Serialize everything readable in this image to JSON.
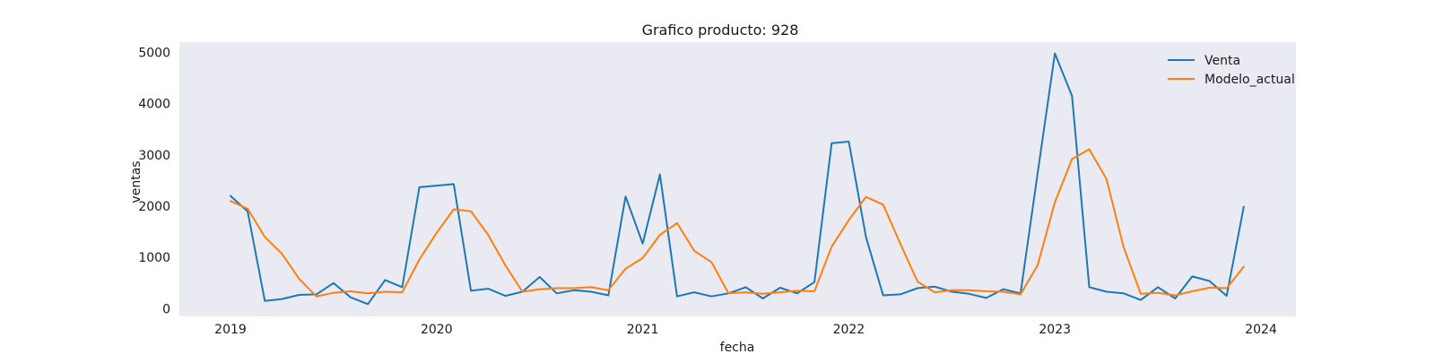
{
  "chart_data": {
    "type": "line",
    "title": "Grafico producto: 928",
    "xlabel": "fecha",
    "ylabel": "ventas",
    "x_start": "2019-01",
    "x_tick_labels": [
      "2019",
      "2020",
      "2021",
      "2022",
      "2023",
      "2024"
    ],
    "y_ticks": [
      0,
      1000,
      2000,
      3000,
      4000,
      5000
    ],
    "ylim": [
      -150,
      5200
    ],
    "grid": false,
    "legend_position": "top-right",
    "plot_background": "#eaeaf2",
    "series": [
      {
        "name": "Venta",
        "color": "#1f77b4",
        "values": [
          2200,
          1900,
          150,
          190,
          270,
          280,
          500,
          220,
          90,
          560,
          420,
          2370,
          2400,
          2430,
          350,
          390,
          250,
          330,
          620,
          300,
          360,
          330,
          260,
          2190,
          1270,
          2620,
          240,
          320,
          240,
          300,
          420,
          200,
          410,
          300,
          520,
          3230,
          3260,
          1400,
          260,
          280,
          400,
          430,
          330,
          290,
          210,
          380,
          300,
          2650,
          4980,
          4150,
          420,
          330,
          300,
          170,
          420,
          200,
          630,
          540,
          250,
          1990
        ]
      },
      {
        "name": "Modelo_actual",
        "color": "#ff7f0e",
        "values": [
          2100,
          1950,
          1400,
          1070,
          580,
          240,
          310,
          340,
          300,
          330,
          320,
          960,
          1480,
          1940,
          1900,
          1440,
          850,
          330,
          380,
          400,
          400,
          420,
          360,
          780,
          990,
          1440,
          1670,
          1130,
          910,
          300,
          320,
          290,
          320,
          350,
          340,
          1210,
          1730,
          2180,
          2030,
          1270,
          530,
          320,
          360,
          360,
          340,
          330,
          280,
          850,
          2080,
          2920,
          3110,
          2530,
          1200,
          290,
          310,
          260,
          340,
          410,
          400,
          820
        ]
      }
    ]
  }
}
